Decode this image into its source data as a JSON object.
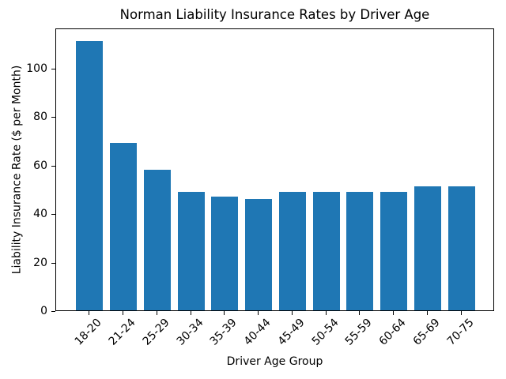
{
  "chart_data": {
    "type": "bar",
    "title": "Norman Liability Insurance Rates by Driver Age",
    "xlabel": "Driver Age Group",
    "ylabel": "Liability Insurance Rate ($ per Month)",
    "categories": [
      "18-20",
      "21-24",
      "25-29",
      "30-34",
      "35-39",
      "40-44",
      "45-49",
      "50-54",
      "55-59",
      "60-64",
      "65-69",
      "70-75"
    ],
    "values": [
      111,
      69,
      58,
      49,
      47,
      46,
      49,
      49,
      49,
      49,
      51,
      51
    ],
    "yticks": [
      0,
      20,
      40,
      60,
      80,
      100
    ],
    "ylim": [
      0,
      116.55
    ],
    "bar_color": "#1f77b4",
    "axis_color": "#000000",
    "background_color": "#ffffff",
    "bar_width_fraction": 0.8,
    "x_tick_rotation": 45,
    "grid": false,
    "legend": false
  }
}
